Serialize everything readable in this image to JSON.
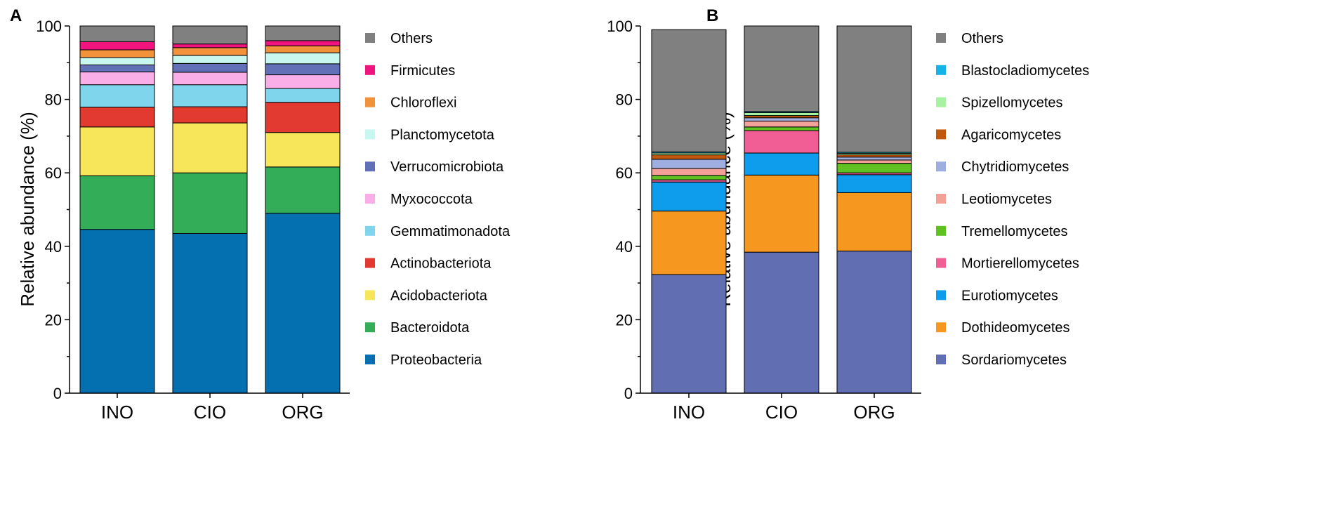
{
  "chart_data": [
    {
      "panel_label": "A",
      "type": "bar",
      "stacked": true,
      "title": "",
      "xlabel": "",
      "ylabel": "Relative abundance (%)",
      "ylim": [
        0,
        100
      ],
      "yticks": [
        0,
        20,
        40,
        60,
        80,
        100
      ],
      "legend_position": "right",
      "categories": [
        "INO",
        "CIO",
        "ORG"
      ],
      "series": [
        {
          "name": "Proteobacteria",
          "color": "#0570b0",
          "values": [
            44.6,
            43.5,
            49.0
          ]
        },
        {
          "name": "Bacteroidota",
          "color": "#33ad57",
          "values": [
            14.6,
            16.5,
            12.6
          ]
        },
        {
          "name": "Acidobacteriota",
          "color": "#f7e55a",
          "values": [
            13.3,
            13.6,
            9.4
          ]
        },
        {
          "name": "Actinobacteriota",
          "color": "#e23a30",
          "values": [
            5.4,
            4.4,
            8.2
          ]
        },
        {
          "name": "Gemmatimonadota",
          "color": "#7fd5ec",
          "values": [
            6.1,
            6.0,
            3.8
          ]
        },
        {
          "name": "Myxococcota",
          "color": "#f9aee8",
          "values": [
            3.5,
            3.4,
            3.7
          ]
        },
        {
          "name": "Verrucomicrobiota",
          "color": "#6270b7",
          "values": [
            1.9,
            2.4,
            3.0
          ]
        },
        {
          "name": "Planctomycetota",
          "color": "#c8f7ef",
          "values": [
            2.0,
            2.2,
            3.0
          ]
        },
        {
          "name": "Chloroflexi",
          "color": "#f2923a",
          "values": [
            2.1,
            2.1,
            1.9
          ]
        },
        {
          "name": "Firmicutes",
          "color": "#f0147f",
          "values": [
            2.2,
            1.0,
            1.4
          ]
        },
        {
          "name": "Others",
          "color": "#808080",
          "values": [
            4.3,
            4.9,
            4.0
          ]
        }
      ]
    },
    {
      "panel_label": "B",
      "type": "bar",
      "stacked": true,
      "title": "",
      "xlabel": "",
      "ylabel": "Relative abundance (%)",
      "ylim": [
        0,
        100
      ],
      "yticks": [
        0,
        20,
        40,
        60,
        80,
        100
      ],
      "legend_position": "right",
      "categories": [
        "INO",
        "CIO",
        "ORG"
      ],
      "series": [
        {
          "name": "Sordariomycetes",
          "color": "#626eb2",
          "values": [
            32.3,
            38.4,
            38.7
          ]
        },
        {
          "name": "Dothideomycetes",
          "color": "#f6971f",
          "values": [
            17.3,
            21.0,
            15.9
          ]
        },
        {
          "name": "Eurotiomycetes",
          "color": "#0d9dec",
          "values": [
            7.9,
            6.0,
            4.9
          ]
        },
        {
          "name": "Mortierellomycetes",
          "color": "#f15e96",
          "values": [
            0.6,
            6.1,
            0.5
          ]
        },
        {
          "name": "Tremellomycetes",
          "color": "#5fc122",
          "values": [
            1.2,
            1.0,
            2.6
          ]
        },
        {
          "name": "Leotiomycetes",
          "color": "#f3a099",
          "values": [
            1.9,
            1.6,
            0.9
          ]
        },
        {
          "name": "Chytridiomycetes",
          "color": "#9eaee0",
          "values": [
            2.5,
            0.9,
            0.8
          ]
        },
        {
          "name": "Agaricomycetes",
          "color": "#c0580e",
          "values": [
            1.2,
            0.6,
            0.6
          ]
        },
        {
          "name": "Spizellomycetes",
          "color": "#a6f2a0",
          "values": [
            0.5,
            0.8,
            0.4
          ]
        },
        {
          "name": "Blastocladiomycetes",
          "color": "#14b4e8",
          "values": [
            0.3,
            0.3,
            0.3
          ]
        },
        {
          "name": "Others",
          "color": "#808080",
          "values": [
            33.3,
            23.3,
            34.4
          ]
        }
      ]
    }
  ]
}
